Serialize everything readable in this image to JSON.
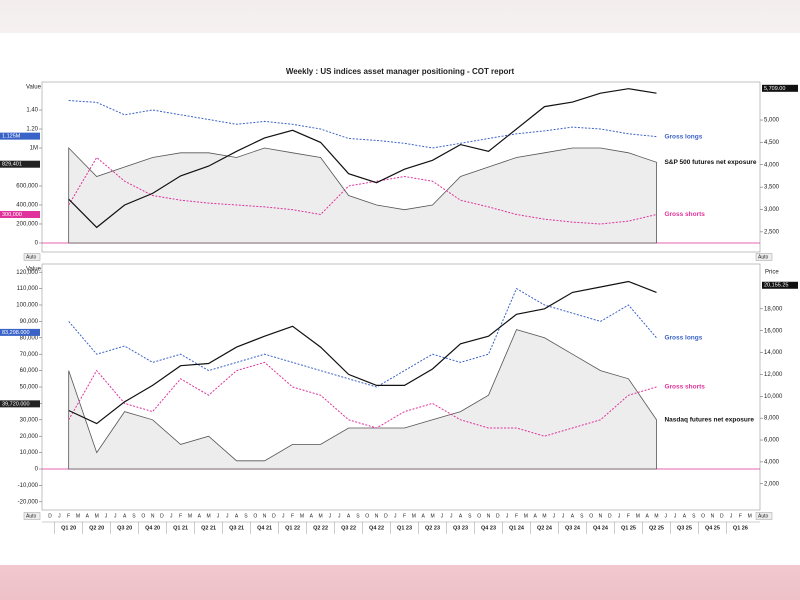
{
  "title": "Weekly : US indices asset manager positioning - COT report",
  "buttons": [
    "Auto",
    "Auto",
    "Auto",
    "Auto"
  ],
  "x_axis": {
    "months": [
      "D",
      "J",
      "F",
      "M",
      "A",
      "M",
      "J",
      "J",
      "A",
      "S",
      "O",
      "N",
      "D",
      "J",
      "F",
      "M",
      "A",
      "M",
      "J",
      "J",
      "A",
      "S",
      "O",
      "N",
      "D",
      "J",
      "F",
      "M",
      "A",
      "M",
      "J",
      "J",
      "A",
      "S",
      "O",
      "N",
      "D",
      "J",
      "F",
      "M",
      "A",
      "M",
      "J",
      "J",
      "A",
      "S",
      "O",
      "N",
      "D",
      "J",
      "F",
      "M",
      "A",
      "M",
      "J",
      "J",
      "A",
      "S",
      "O",
      "N",
      "D",
      "J",
      "F",
      "M",
      "A",
      "M",
      "J",
      "J",
      "A",
      "S",
      "O",
      "N",
      "D",
      "J",
      "F",
      "M",
      "A"
    ],
    "quarters": [
      "Q1 20",
      "Q2 20",
      "Q3 20",
      "Q4 20",
      "Q1 21",
      "Q2 21",
      "Q3 21",
      "Q4 21",
      "Q1 22",
      "Q2 22",
      "Q3 22",
      "Q4 22",
      "Q1 23",
      "Q2 23",
      "Q3 23",
      "Q4 23",
      "Q1 24",
      "Q2 24",
      "Q3 24",
      "Q4 24",
      "Q1 25",
      "Q2 25",
      "Q3 25",
      "Q4 25",
      "Q1 26"
    ]
  },
  "chart_data": [
    {
      "type": "line",
      "y_label": "Value",
      "ylim": [
        -95000,
        1695000
      ],
      "yticks": [
        0,
        {
          "value": 200000,
          "label": "200,000"
        },
        {
          "value": 400000,
          "label": "400,000"
        },
        {
          "value": 600000,
          "label": "600,000"
        },
        {
          "value": 1000000,
          "label": "1M"
        },
        {
          "value": 1200000,
          "label": "1.20"
        },
        {
          "value": 1400000,
          "label": "1.40"
        }
      ],
      "y2lim": [
        2050,
        5850
      ],
      "y2ticks": [
        {
          "value": 2500,
          "label": "2,500"
        },
        {
          "value": 3000,
          "label": "3,000"
        },
        {
          "value": 3500,
          "label": "3,500"
        },
        {
          "value": 4000,
          "label": "4,000"
        },
        {
          "value": 4500,
          "label": "4,500"
        },
        {
          "value": 5000,
          "label": "5,000"
        }
      ],
      "series": [
        {
          "name": "S&P 500 futures net exposure",
          "color": "#555555",
          "style": "area",
          "values": [
            1000000,
            700000,
            800000,
            900000,
            950000,
            950000,
            900000,
            1000000,
            950000,
            900000,
            500000,
            400000,
            350000,
            400000,
            700000,
            800000,
            900000,
            950000,
            1000000,
            1000000,
            950000,
            850000,
            null,
            null,
            null
          ]
        },
        {
          "name": "Gross longs",
          "color": "#3a63c8",
          "style": "dashed",
          "values": [
            1500000,
            1480000,
            1350000,
            1400000,
            1350000,
            1300000,
            1250000,
            1280000,
            1250000,
            1200000,
            1100000,
            1080000,
            1050000,
            1000000,
            1050000,
            1100000,
            1150000,
            1180000,
            1220000,
            1200000,
            1150000,
            1120000,
            null,
            null,
            null
          ]
        },
        {
          "name": "Gross shorts",
          "color": "#e0329c",
          "style": "dashed",
          "values": [
            400000,
            900000,
            650000,
            500000,
            450000,
            420000,
            400000,
            380000,
            350000,
            300000,
            600000,
            650000,
            700000,
            650000,
            450000,
            380000,
            300000,
            250000,
            220000,
            200000,
            230000,
            300000,
            null,
            null,
            null
          ]
        },
        {
          "color": "#111111",
          "style": "solid",
          "axis": "y2",
          "values": [
            3230,
            2600,
            3100,
            3360,
            3750,
            3970,
            4300,
            4600,
            4770,
            4500,
            3800,
            3600,
            3900,
            4100,
            4450,
            4300,
            4800,
            5300,
            5400,
            5600,
            5700,
            5600,
            null,
            null,
            null
          ]
        }
      ],
      "tags": [
        {
          "label": "1.125M",
          "value": 1125000,
          "color": "#3a63c8",
          "axis": "y"
        },
        {
          "label": "829,401",
          "value": 829401,
          "color": "#222222",
          "axis": "y"
        },
        {
          "label": "300,000",
          "value": 300000,
          "color": "#e0329c",
          "axis": "y"
        },
        {
          "label": "5,709.00",
          "value": 5709,
          "color": "#111111",
          "axis": "y2"
        }
      ]
    },
    {
      "type": "line",
      "y_label": "Value",
      "y2_label": "Price",
      "ylim": [
        -25000,
        125000
      ],
      "yticks": [
        {
          "value": -20000,
          "label": "-20,000"
        },
        {
          "value": -10000,
          "label": "-10,000"
        },
        0,
        {
          "value": 10000,
          "label": "10,000"
        },
        {
          "value": 20000,
          "label": "20,000"
        },
        {
          "value": 30000,
          "label": "30,000"
        },
        {
          "value": 40000,
          "label": "40,000"
        },
        {
          "value": 50000,
          "label": "50,000"
        },
        {
          "value": 60000,
          "label": "60,000"
        },
        {
          "value": 70000,
          "label": "70,000"
        },
        {
          "value": 80000,
          "label": "80,000"
        },
        {
          "value": 90000,
          "label": "90,000"
        },
        {
          "value": 100000,
          "label": "100,000"
        },
        {
          "value": 110000,
          "label": "110,000"
        },
        {
          "value": 120000,
          "label": "120,000"
        }
      ],
      "y2lim": [
        -400,
        22100
      ],
      "y2ticks": [
        {
          "value": 2000,
          "label": "2,000"
        },
        {
          "value": 4000,
          "label": "4,000"
        },
        {
          "value": 6000,
          "label": "6,000"
        },
        {
          "value": 8000,
          "label": "8,000"
        },
        {
          "value": 10000,
          "label": "10,000"
        },
        {
          "value": 12000,
          "label": "12,000"
        },
        {
          "value": 14000,
          "label": "14,000"
        },
        {
          "value": 16000,
          "label": "16,000"
        },
        {
          "value": 18000,
          "label": "18,000"
        }
      ],
      "series": [
        {
          "name": "Nasdaq futures net exposure",
          "color": "#555555",
          "style": "area",
          "values": [
            60000,
            10000,
            35000,
            30000,
            15000,
            20000,
            5000,
            5000,
            15000,
            15000,
            25000,
            25000,
            25000,
            30000,
            35000,
            45000,
            85000,
            80000,
            70000,
            60000,
            55000,
            30000,
            null,
            null,
            null
          ]
        },
        {
          "name": "Gross longs",
          "color": "#3a63c8",
          "style": "dashed",
          "values": [
            90000,
            70000,
            75000,
            65000,
            70000,
            60000,
            65000,
            70000,
            65000,
            60000,
            55000,
            50000,
            60000,
            70000,
            65000,
            70000,
            110000,
            100000,
            95000,
            90000,
            100000,
            80000,
            null,
            null,
            null
          ]
        },
        {
          "name": "Gross shorts",
          "color": "#e0329c",
          "style": "dashed",
          "values": [
            30000,
            60000,
            40000,
            35000,
            55000,
            45000,
            60000,
            65000,
            50000,
            45000,
            30000,
            25000,
            35000,
            40000,
            30000,
            25000,
            25000,
            20000,
            25000,
            30000,
            45000,
            50000,
            null,
            null,
            null
          ]
        },
        {
          "color": "#111111",
          "style": "solid",
          "axis": "y2",
          "values": [
            8700,
            7500,
            9500,
            11000,
            12800,
            13000,
            14500,
            15500,
            16400,
            14500,
            12000,
            11000,
            11000,
            12500,
            14800,
            15500,
            17500,
            18000,
            19500,
            20000,
            20500,
            19500,
            null,
            null,
            null
          ]
        }
      ],
      "tags": [
        {
          "label": "83,298.000",
          "value": 83298,
          "color": "#3a63c8",
          "axis": "y"
        },
        {
          "label": "39,720.000",
          "value": 39720,
          "color": "#222222",
          "axis": "y"
        },
        {
          "label": "20,155.25",
          "value": 20155.25,
          "color": "#111111",
          "axis": "y2"
        }
      ]
    }
  ]
}
